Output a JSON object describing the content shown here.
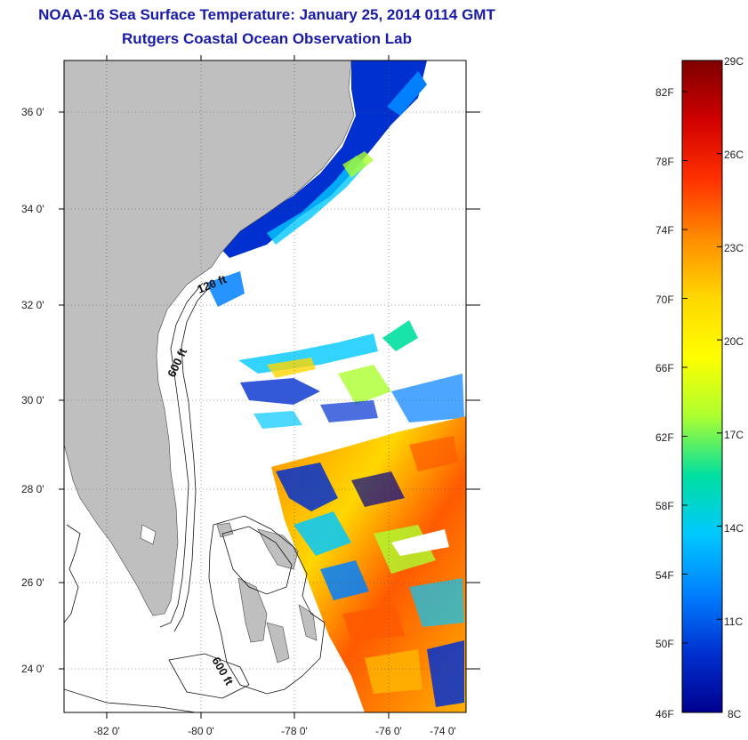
{
  "title": {
    "line1": "NOAA-16 Sea Surface Temperature:  January 25, 2014 0114 GMT",
    "line2": "Rutgers Coastal Ocean Observation Lab"
  },
  "map": {
    "lat_labels": [
      "36 0'",
      "34 0'",
      "32 0'",
      "30 0'",
      "28 0'",
      "26 0'",
      "24 0'"
    ],
    "lon_labels": [
      "-82 0'",
      "-80 0'",
      "-78 0'",
      "-76 0'",
      "-74 0'"
    ],
    "contour_labels": [
      "120 ft",
      "600 ft",
      "600 ft"
    ],
    "colors": {
      "land": "#bfbfbf",
      "frame": "#000000",
      "grid": "#555555"
    }
  },
  "colorbar": {
    "celsius_labels": [
      "29C",
      "26C",
      "23C",
      "20C",
      "17C",
      "14C",
      "11C",
      "8C"
    ],
    "fahrenheit_labels": [
      "82F",
      "78F",
      "74F",
      "70F",
      "66F",
      "62F",
      "58F",
      "54F",
      "50F",
      "46F"
    ],
    "stops": [
      "#7f0000",
      "#d00000",
      "#ff3000",
      "#ff8c00",
      "#ffd700",
      "#ffff00",
      "#adff2f",
      "#00e0a0",
      "#00c8ff",
      "#0080ff",
      "#0030d0",
      "#00008f"
    ]
  }
}
